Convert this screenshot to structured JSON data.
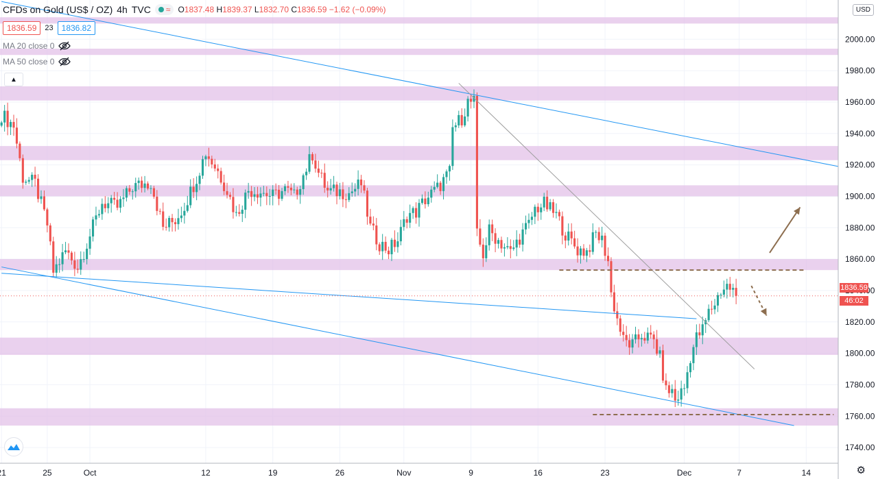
{
  "header": {
    "symbol": "CFDs on Gold (US$ / OZ)",
    "interval": "4h",
    "source": "TVC",
    "open_label": "O",
    "open": "1837.48",
    "high_label": "H",
    "high": "1839.37",
    "low_label": "L",
    "low": "1832.70",
    "close_label": "C",
    "close": "1836.59",
    "change": "−1.62 (−0.09%)",
    "sell_price": "1836.59",
    "spread": "23",
    "buy_price": "1836.82"
  },
  "indicators": [
    {
      "label": "MA 20 close 0"
    },
    {
      "label": "MA 50 close 0"
    }
  ],
  "currency": "USD",
  "last_price_label": "1836.59",
  "countdown": "46:02",
  "colors": {
    "up": "#26a69a",
    "down": "#ef5350",
    "zone": "#e1bee7",
    "trendline": "#2196f3",
    "grayline": "#9e9e9e",
    "arrow": "#8d6e4f"
  },
  "chart_data": {
    "type": "candlestick",
    "title": "CFDs on Gold (US$ / OZ), 4h, TVC",
    "ylim": [
      1730,
      2025
    ],
    "y_ticks": [
      "1740.00",
      "1760.00",
      "1780.00",
      "1800.00",
      "1820.00",
      "1840.00",
      "1860.00",
      "1880.00",
      "1900.00",
      "1920.00",
      "1940.00",
      "1960.00",
      "1980.00",
      "2000.00"
    ],
    "x_ticks": [
      {
        "label": "21",
        "i": 0
      },
      {
        "label": "25",
        "i": 15
      },
      {
        "label": "Oct",
        "i": 29
      },
      {
        "label": "12",
        "i": 67
      },
      {
        "label": "19",
        "i": 89
      },
      {
        "label": "26",
        "i": 111
      },
      {
        "label": "Nov",
        "i": 132
      },
      {
        "label": "9",
        "i": 154
      },
      {
        "label": "16",
        "i": 176
      },
      {
        "label": "23",
        "i": 198
      },
      {
        "label": "Dec",
        "i": 224
      },
      {
        "label": "7",
        "i": 242
      },
      {
        "label": "14",
        "i": 264
      }
    ],
    "x_span": [
      -0.5,
      274.5
    ],
    "anchors": [
      [
        0,
        1952
      ],
      [
        4,
        1945
      ],
      [
        7,
        1912
      ],
      [
        11,
        1908
      ],
      [
        15,
        1882
      ],
      [
        17,
        1852
      ],
      [
        21,
        1865
      ],
      [
        25,
        1855
      ],
      [
        28,
        1870
      ],
      [
        33,
        1896
      ],
      [
        38,
        1893
      ],
      [
        43,
        1906
      ],
      [
        49,
        1909
      ],
      [
        53,
        1880
      ],
      [
        57,
        1885
      ],
      [
        60,
        1894
      ],
      [
        64,
        1912
      ],
      [
        67,
        1928
      ],
      [
        71,
        1916
      ],
      [
        74,
        1904
      ],
      [
        77,
        1888
      ],
      [
        81,
        1904
      ],
      [
        85,
        1903
      ],
      [
        89,
        1900
      ],
      [
        93,
        1904
      ],
      [
        96,
        1900
      ],
      [
        100,
        1918
      ],
      [
        102,
        1927
      ],
      [
        104,
        1915
      ],
      [
        107,
        1903
      ],
      [
        111,
        1903
      ],
      [
        114,
        1902
      ],
      [
        118,
        1908
      ],
      [
        121,
        1880
      ],
      [
        124,
        1870
      ],
      [
        127,
        1866
      ],
      [
        130,
        1872
      ],
      [
        133,
        1888
      ],
      [
        136,
        1890
      ],
      [
        139,
        1898
      ],
      [
        143,
        1905
      ],
      [
        147,
        1915
      ],
      [
        148,
        1943
      ],
      [
        151,
        1950
      ],
      [
        153,
        1960
      ],
      [
        155,
        1960
      ],
      [
        156,
        1875
      ],
      [
        158,
        1863
      ],
      [
        160,
        1878
      ],
      [
        164,
        1870
      ],
      [
        167,
        1864
      ],
      [
        170,
        1874
      ],
      [
        173,
        1882
      ],
      [
        175,
        1892
      ],
      [
        178,
        1895
      ],
      [
        182,
        1888
      ],
      [
        185,
        1876
      ],
      [
        189,
        1866
      ],
      [
        192,
        1865
      ],
      [
        195,
        1876
      ],
      [
        197,
        1872
      ],
      [
        199,
        1859
      ],
      [
        200,
        1838
      ],
      [
        202,
        1822
      ],
      [
        204,
        1808
      ],
      [
        207,
        1805
      ],
      [
        210,
        1812
      ],
      [
        214,
        1808
      ],
      [
        216,
        1797
      ],
      [
        218,
        1776
      ],
      [
        220,
        1776
      ],
      [
        221,
        1770
      ],
      [
        224,
        1778
      ],
      [
        226,
        1798
      ],
      [
        228,
        1810
      ],
      [
        230,
        1815
      ],
      [
        232,
        1826
      ],
      [
        234,
        1832
      ],
      [
        236,
        1840
      ],
      [
        238,
        1843
      ],
      [
        240,
        1840
      ],
      [
        241,
        1836.6
      ]
    ],
    "zones": [
      [
        2010,
        2014
      ],
      [
        1990,
        1994
      ],
      [
        1961,
        1970
      ],
      [
        1923,
        1932
      ],
      [
        1900,
        1907
      ],
      [
        1853,
        1860
      ],
      [
        1799,
        1810
      ],
      [
        1754,
        1765
      ]
    ],
    "trendlines": [
      {
        "kind": "resistance",
        "points": [
          [
            0,
            2024
          ],
          [
            274.5,
            1919
          ]
        ]
      },
      {
        "kind": "channel",
        "points": [
          [
            0,
            1851
          ],
          [
            228,
            1822
          ]
        ]
      },
      {
        "kind": "channel",
        "points": [
          [
            0,
            1855
          ],
          [
            260,
            1754
          ]
        ]
      },
      {
        "kind": "falling",
        "points": [
          [
            150,
            1972
          ],
          [
            247,
            1790
          ]
        ]
      }
    ],
    "levels": [
      {
        "y": 1853,
        "from": 183,
        "to": 264
      },
      {
        "y": 1761,
        "from": 194,
        "to": 273
      }
    ],
    "arrows": [
      {
        "kind": "solid",
        "from": [
          252,
          1864
        ],
        "to": [
          262,
          1893
        ]
      },
      {
        "kind": "dashed",
        "from": [
          246,
          1843
        ],
        "to": [
          251,
          1824
        ]
      }
    ]
  }
}
